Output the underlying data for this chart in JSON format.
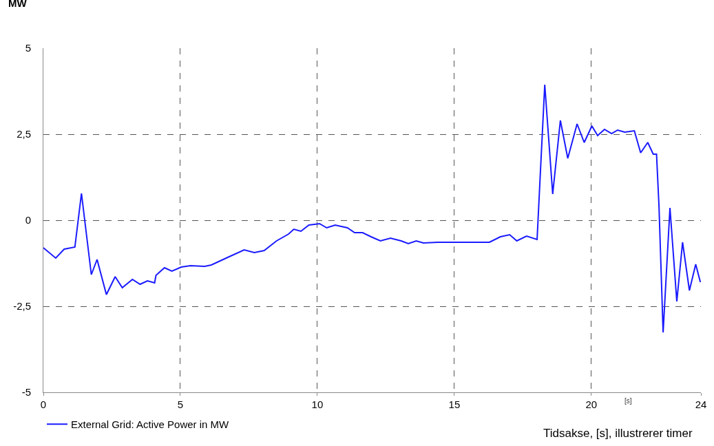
{
  "chart_data": {
    "type": "line",
    "xlabel": "Tidsakse, [s], illustrerer timer",
    "ylabel": "MW",
    "annotations": [
      "[s]"
    ],
    "x": [
      0,
      0.45,
      0.76,
      1.15,
      1.39,
      1.75,
      1.96,
      2.3,
      2.62,
      2.88,
      3.25,
      3.53,
      3.8,
      4.06,
      4.11,
      4.42,
      4.69,
      5.03,
      5.37,
      5.89,
      6.13,
      6.78,
      7.33,
      7.7,
      8.06,
      8.51,
      8.95,
      9.14,
      9.4,
      9.69,
      10.08,
      10.34,
      10.65,
      11.1,
      11.36,
      11.65,
      11.96,
      12.3,
      12.67,
      13.06,
      13.32,
      13.61,
      13.87,
      14.4,
      14.92,
      16.28,
      16.68,
      17.02,
      17.28,
      17.64,
      18.02,
      18.12,
      18.3,
      18.59,
      18.87,
      19.14,
      19.48,
      19.74,
      20.02,
      20.23,
      20.48,
      20.74,
      20.96,
      21.22,
      21.57,
      21.8,
      22.06,
      22.26,
      22.38,
      22.47,
      22.62,
      22.87,
      23.12,
      23.33,
      23.58,
      23.81,
      23.98
    ],
    "series": [
      {
        "name": "External Grid: Active Power in MW",
        "color": "#1a1aff",
        "values": [
          -0.8,
          -1.1,
          -0.84,
          -0.78,
          0.78,
          -1.58,
          -1.14,
          -2.16,
          -1.64,
          -1.96,
          -1.72,
          -1.86,
          -1.76,
          -1.82,
          -1.6,
          -1.38,
          -1.48,
          -1.36,
          -1.32,
          -1.34,
          -1.3,
          -1.06,
          -0.86,
          -0.94,
          -0.88,
          -0.6,
          -0.4,
          -0.26,
          -0.32,
          -0.14,
          -0.1,
          -0.22,
          -0.14,
          -0.22,
          -0.36,
          -0.36,
          -0.48,
          -0.6,
          -0.52,
          -0.6,
          -0.68,
          -0.6,
          -0.66,
          -0.64,
          -0.64,
          -0.64,
          -0.48,
          -0.42,
          -0.6,
          -0.46,
          -0.56,
          1.06,
          3.94,
          0.76,
          2.9,
          1.8,
          2.8,
          2.26,
          2.74,
          2.46,
          2.64,
          2.52,
          2.62,
          2.56,
          2.6,
          1.96,
          2.26,
          1.92,
          1.92,
          0.4,
          -3.26,
          0.36,
          -2.36,
          -0.64,
          -2.04,
          -1.28,
          -1.8
        ]
      }
    ],
    "xlim": [
      0,
      24
    ],
    "xticks": [
      0,
      5,
      10,
      15,
      20,
      24
    ],
    "ylim": [
      -5,
      5
    ],
    "yticks": [
      {
        "value": -5,
        "label": "-5"
      },
      {
        "value": -2.5,
        "label": "-2,5"
      },
      0,
      {
        "value": 2.5,
        "label": "2,5"
      },
      5
    ],
    "grid": true,
    "legend": "bottom left",
    "marker": "none",
    "line_style": "solid"
  }
}
